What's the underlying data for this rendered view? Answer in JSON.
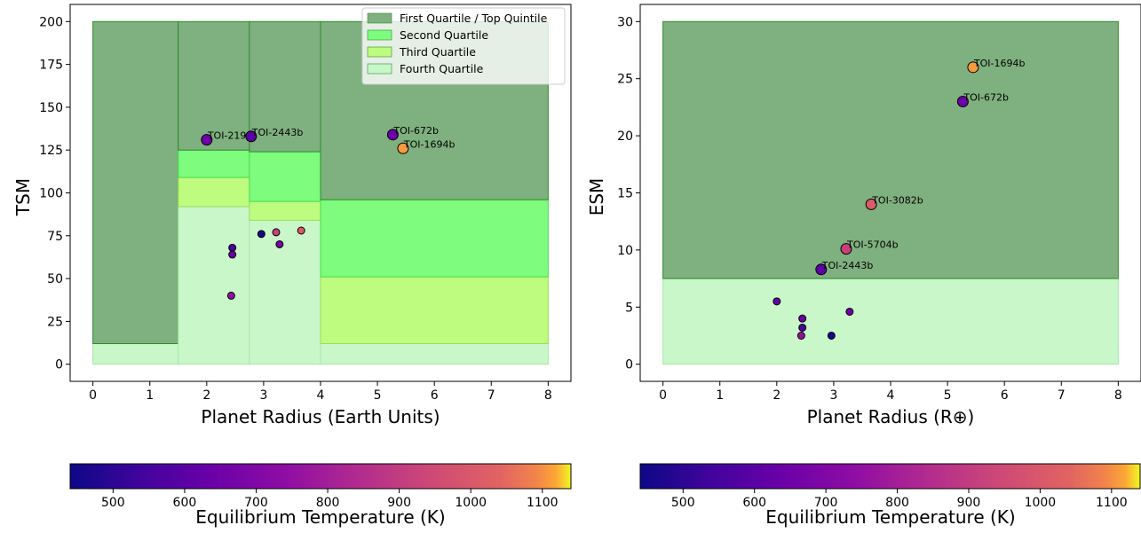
{
  "chart_data": [
    {
      "type": "scatter",
      "xlabel": "Planet Radius (Earth Units)",
      "ylabel": "TSM",
      "xlim": [
        -0.4,
        8.4
      ],
      "ylim": [
        -10,
        210
      ],
      "xticks": [
        "0",
        "1",
        "2",
        "3",
        "4",
        "5",
        "6",
        "7",
        "8"
      ],
      "yticks": [
        "0",
        "25",
        "50",
        "75",
        "100",
        "125",
        "150",
        "175",
        "200"
      ],
      "legend_position": "top-right",
      "legend": [
        {
          "label": "First Quartile / Top Quintile",
          "color": "#7fb07f"
        },
        {
          "label": "Second Quartile",
          "color": "#7dfc7d"
        },
        {
          "label": "Third Quartile",
          "color": "#bdfc7f"
        },
        {
          "label": "Fourth Quartile",
          "color": "#c9f7c9"
        }
      ],
      "regions": [
        {
          "x": [
            0,
            1.5
          ],
          "fourth": [
            0,
            12
          ],
          "top": [
            12,
            200
          ]
        },
        {
          "x": [
            1.5,
            2.75
          ],
          "fourth": [
            0,
            92
          ],
          "third": [
            92,
            109
          ],
          "second": [
            109,
            125
          ],
          "top": [
            125,
            200
          ]
        },
        {
          "x": [
            2.75,
            4
          ],
          "fourth": [
            0,
            84
          ],
          "third": [
            84,
            95
          ],
          "second": [
            95,
            124
          ],
          "top": [
            124,
            200
          ]
        },
        {
          "x": [
            4,
            8
          ],
          "fourth": [
            0,
            12
          ],
          "third": [
            12,
            51
          ],
          "second": [
            51,
            96
          ],
          "top": [
            96,
            200
          ]
        }
      ],
      "points": [
        {
          "x": 2.0,
          "y": 131,
          "temp": 650,
          "label": "TOI-219",
          "size": "large"
        },
        {
          "x": 2.78,
          "y": 133,
          "temp": 600,
          "label": "TOI-2443b",
          "size": "large"
        },
        {
          "x": 5.27,
          "y": 134,
          "temp": 640,
          "label": "TOI-672b",
          "size": "large"
        },
        {
          "x": 5.45,
          "y": 126,
          "temp": 1110,
          "label": "TOI-1694b",
          "size": "large"
        },
        {
          "x": 2.45,
          "y": 68,
          "temp": 560,
          "label": "",
          "size": "small"
        },
        {
          "x": 2.45,
          "y": 64,
          "temp": 640,
          "label": "",
          "size": "small"
        },
        {
          "x": 2.43,
          "y": 40,
          "temp": 750,
          "label": "",
          "size": "small"
        },
        {
          "x": 2.96,
          "y": 76,
          "temp": 460,
          "label": "",
          "size": "small"
        },
        {
          "x": 3.22,
          "y": 77,
          "temp": 920,
          "label": "",
          "size": "small"
        },
        {
          "x": 3.28,
          "y": 70,
          "temp": 660,
          "label": "",
          "size": "small"
        },
        {
          "x": 3.66,
          "y": 78,
          "temp": 1010,
          "label": "",
          "size": "small"
        }
      ],
      "colorbar": {
        "label": "Equilibrium Temperature (K)",
        "range": [
          440,
          1140
        ],
        "ticks": [
          "500",
          "600",
          "700",
          "800",
          "900",
          "1000",
          "1100"
        ]
      }
    },
    {
      "type": "scatter",
      "xlabel": "Planet Radius (R⊕)",
      "ylabel": "ESM",
      "xlim": [
        -0.4,
        8.4
      ],
      "ylim": [
        -1.5,
        31.5
      ],
      "xticks": [
        "0",
        "1",
        "2",
        "3",
        "4",
        "5",
        "6",
        "7",
        "8"
      ],
      "yticks": [
        "0",
        "5",
        "10",
        "15",
        "20",
        "25",
        "30"
      ],
      "regions": [
        {
          "x": [
            0,
            8
          ],
          "fourth": [
            0,
            7.5
          ],
          "top": [
            7.5,
            30
          ]
        }
      ],
      "points": [
        {
          "x": 5.45,
          "y": 26.0,
          "temp": 1110,
          "label": "TOI-1694b",
          "size": "large"
        },
        {
          "x": 5.27,
          "y": 23.0,
          "temp": 640,
          "label": "TOI-672b",
          "size": "large"
        },
        {
          "x": 3.66,
          "y": 14.0,
          "temp": 1010,
          "label": "TOI-3082b",
          "size": "large"
        },
        {
          "x": 3.22,
          "y": 10.1,
          "temp": 920,
          "label": "TOI-5704b",
          "size": "large"
        },
        {
          "x": 2.78,
          "y": 8.3,
          "temp": 600,
          "label": "TOI-2443b",
          "size": "large"
        },
        {
          "x": 2.0,
          "y": 5.5,
          "temp": 620,
          "label": "",
          "size": "small"
        },
        {
          "x": 2.45,
          "y": 4.0,
          "temp": 640,
          "label": "",
          "size": "small"
        },
        {
          "x": 2.45,
          "y": 3.2,
          "temp": 560,
          "label": "",
          "size": "small"
        },
        {
          "x": 2.43,
          "y": 2.5,
          "temp": 750,
          "label": "",
          "size": "small"
        },
        {
          "x": 2.96,
          "y": 2.5,
          "temp": 460,
          "label": "",
          "size": "small"
        },
        {
          "x": 3.28,
          "y": 4.6,
          "temp": 660,
          "label": "",
          "size": "small"
        }
      ],
      "colorbar": {
        "label": "Equilibrium Temperature (K)",
        "range": [
          440,
          1140
        ],
        "ticks": [
          "500",
          "600",
          "700",
          "800",
          "900",
          "1000",
          "1100"
        ]
      }
    }
  ],
  "region_colors": {
    "top": "#7fb07f",
    "second": "#7dfc7d",
    "third": "#bdfc7f",
    "fourth": "#c9f7c9",
    "top_edge": "#2e8b2e",
    "second_edge": "#4cdc4c",
    "third_edge": "#9bdc5b",
    "fourth_edge": "#a8e8a8"
  }
}
